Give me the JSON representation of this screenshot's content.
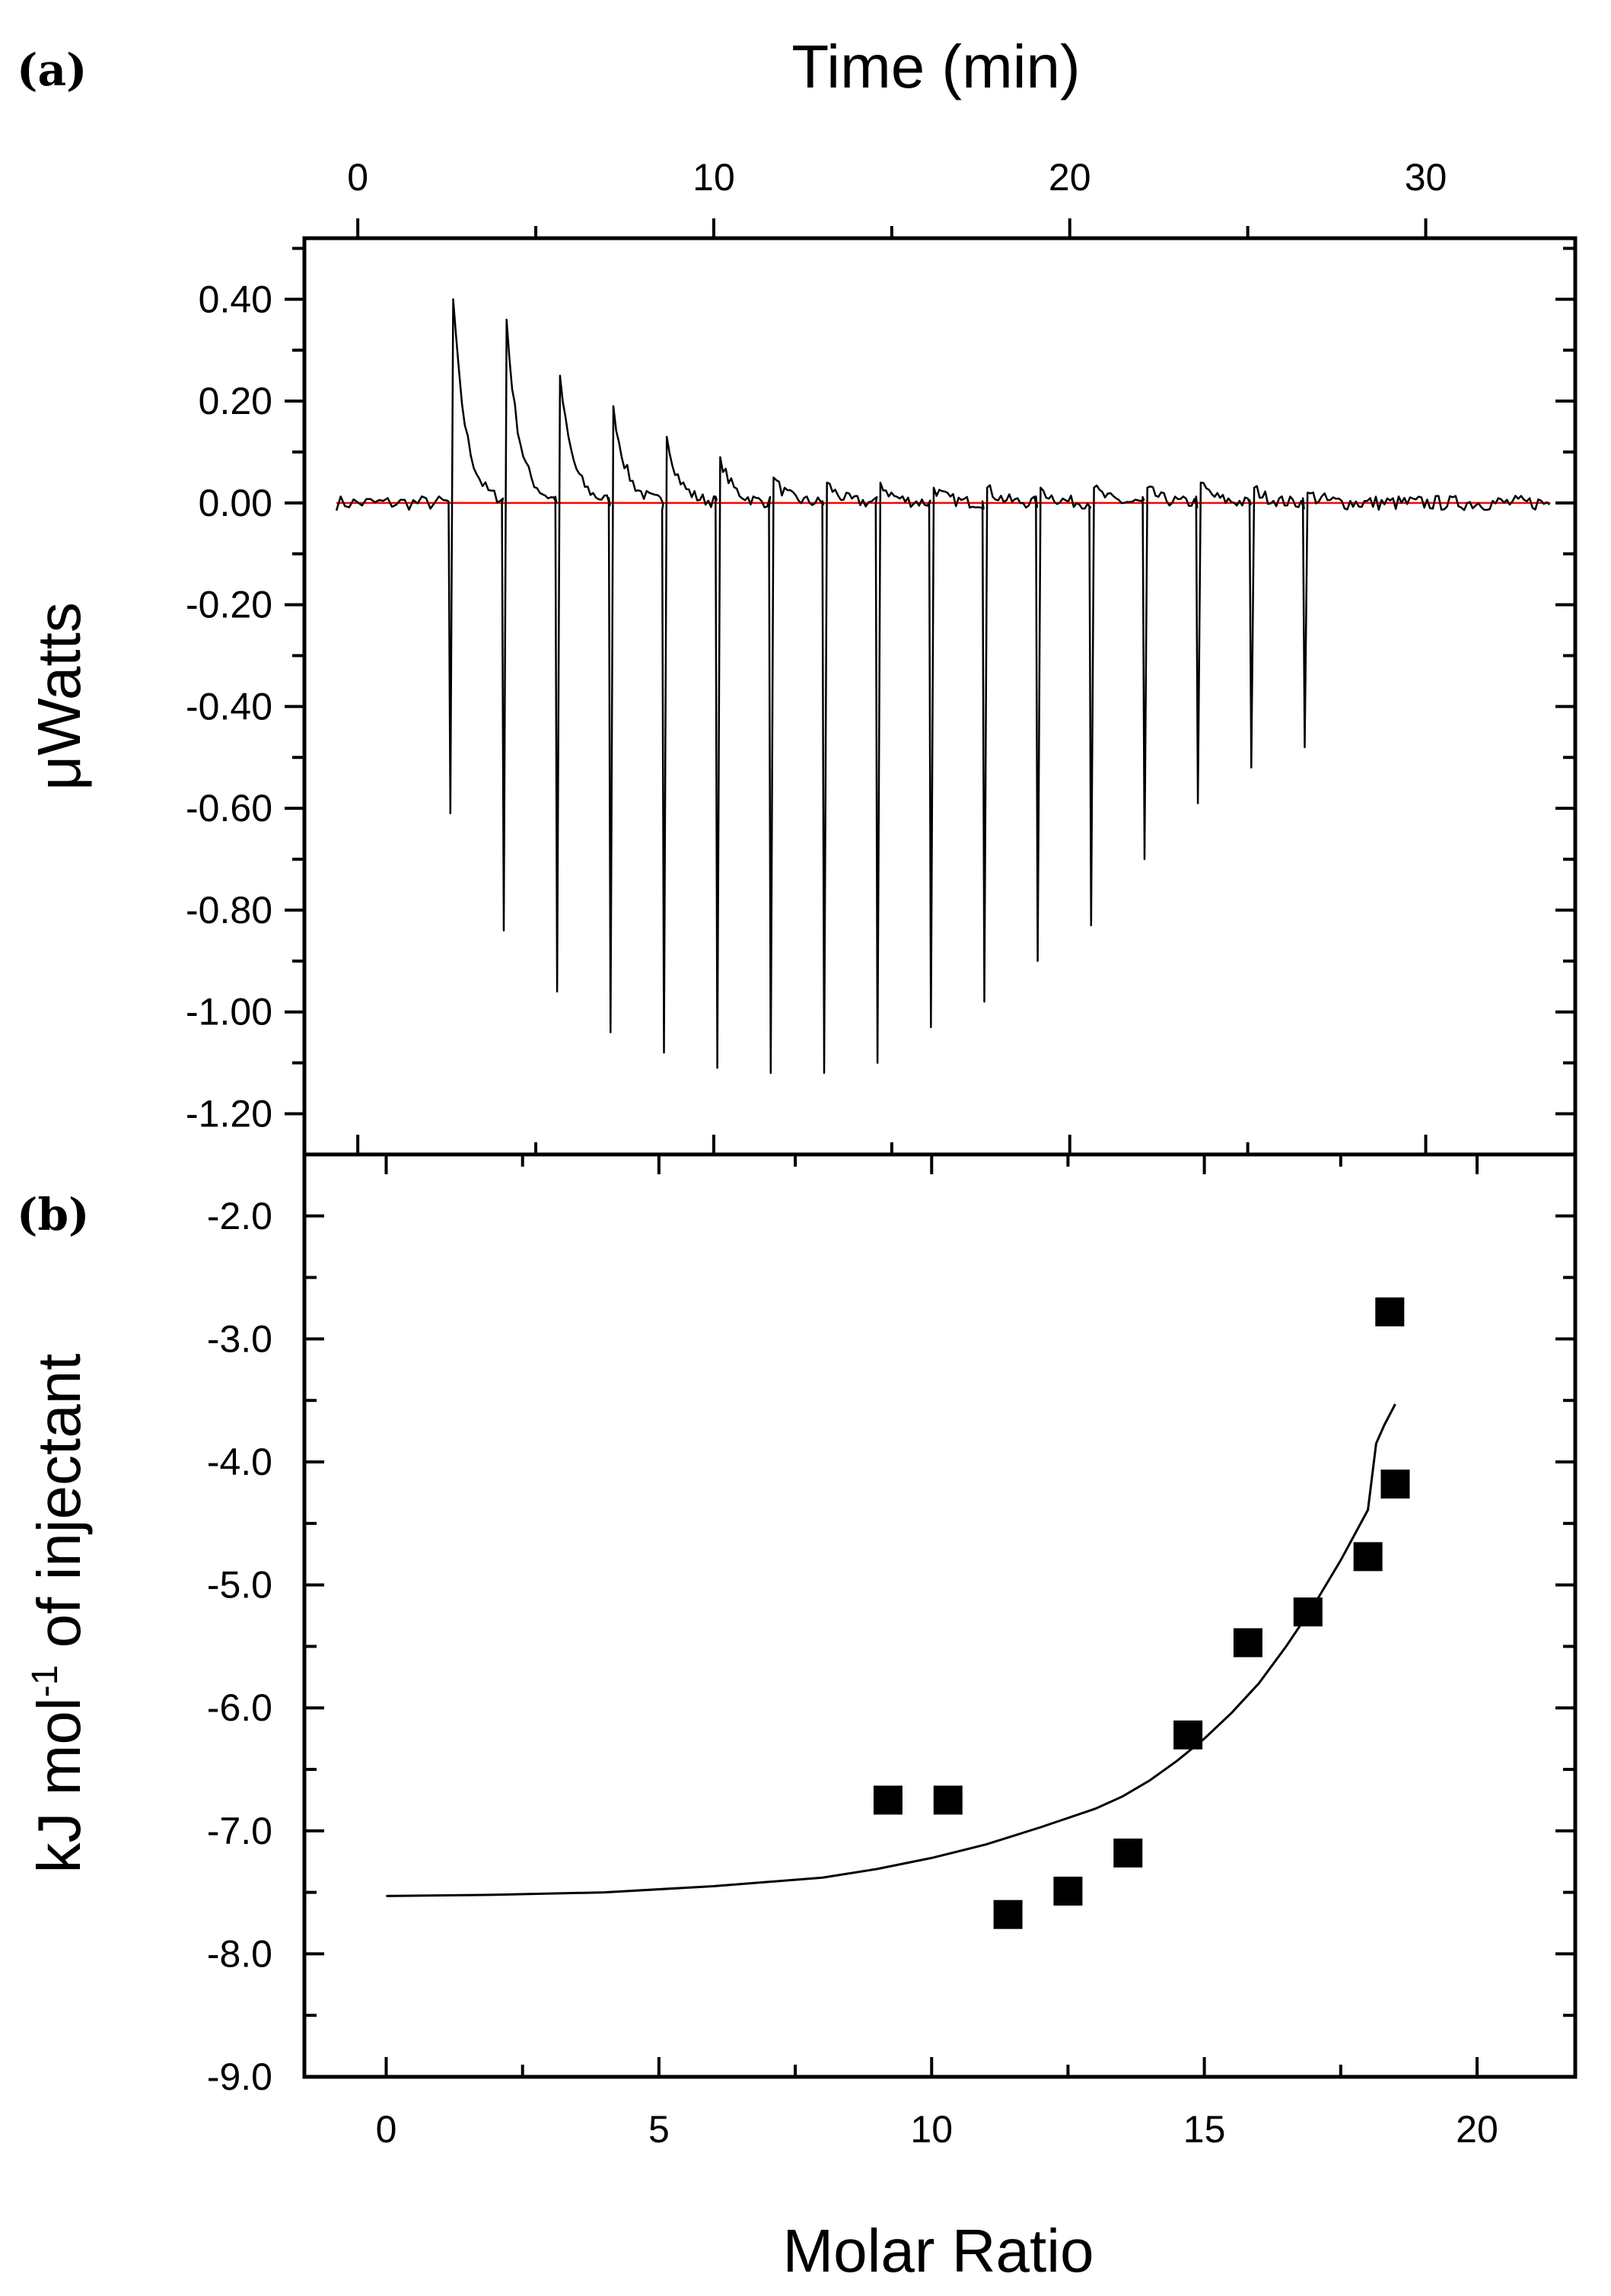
{
  "panel_labels": {
    "a": "(a)",
    "b": "(b)"
  },
  "colors": {
    "trace": "#000000",
    "baseline": "#ff0000",
    "markers": "#000000",
    "fit": "#000000"
  },
  "chart_data": [
    {
      "type": "line",
      "panel": "(a)",
      "xlabel": "Time (min)",
      "xaxis_position": "top",
      "ylabel": "μWatts",
      "xlim": [
        -1.5,
        34.2
      ],
      "ylim": [
        -1.28,
        0.52
      ],
      "xticks": [
        0,
        10,
        20,
        30
      ],
      "xtick_labels": [
        "0",
        "10",
        "20",
        "30"
      ],
      "yticks": [
        0.4,
        0.2,
        0.0,
        -0.2,
        -0.4,
        -0.6,
        -0.8,
        -1.0,
        -1.2
      ],
      "ytick_labels": [
        "0.40",
        "0.20",
        "0.00",
        "-0.20",
        "-0.40",
        "-0.60",
        "-0.80",
        "-1.00",
        "-1.20"
      ],
      "baseline": 0.0,
      "grid": false,
      "injections": [
        {
          "t": 2.6,
          "exo": 0.4,
          "endo": -0.61
        },
        {
          "t": 4.1,
          "exo": 0.36,
          "endo": -0.84
        },
        {
          "t": 5.6,
          "exo": 0.25,
          "endo": -0.96
        },
        {
          "t": 7.1,
          "exo": 0.19,
          "endo": -1.04
        },
        {
          "t": 8.6,
          "exo": 0.13,
          "endo": -1.08
        },
        {
          "t": 10.1,
          "exo": 0.09,
          "endo": -1.11
        },
        {
          "t": 11.6,
          "exo": 0.05,
          "endo": -1.12
        },
        {
          "t": 13.1,
          "exo": 0.04,
          "endo": -1.12
        },
        {
          "t": 14.6,
          "exo": 0.04,
          "endo": -1.1
        },
        {
          "t": 16.1,
          "exo": 0.03,
          "endo": -1.03
        },
        {
          "t": 17.6,
          "exo": 0.03,
          "endo": -0.98
        },
        {
          "t": 19.1,
          "exo": 0.03,
          "endo": -0.9
        },
        {
          "t": 20.6,
          "exo": 0.03,
          "endo": -0.83
        },
        {
          "t": 22.1,
          "exo": 0.03,
          "endo": -0.7
        },
        {
          "t": 23.6,
          "exo": 0.04,
          "endo": -0.59
        },
        {
          "t": 25.1,
          "exo": 0.03,
          "endo": -0.52
        },
        {
          "t": 26.6,
          "exo": 0.02,
          "endo": -0.48
        }
      ]
    },
    {
      "type": "scatter",
      "panel": "(b)",
      "xlabel": "Molar Ratio",
      "ylabel": "kJ mol⁻¹ of injectant",
      "ylabel_parts": {
        "pre": "kJ mol",
        "sup": "-1",
        "post": " of injectant"
      },
      "xlim": [
        -1.5,
        21.8
      ],
      "ylim": [
        -9.0,
        -1.5
      ],
      "xticks": [
        0,
        5,
        10,
        15,
        20
      ],
      "xtick_labels": [
        "0",
        "5",
        "10",
        "15",
        "20"
      ],
      "yticks": [
        -2.0,
        -3.0,
        -4.0,
        -5.0,
        -6.0,
        -7.0,
        -8.0,
        -9.0
      ],
      "ytick_labels": [
        "-2.0",
        "-3.0",
        "-4.0",
        "-5.0",
        "-6.0",
        "-7.0",
        "-8.0",
        "-9.0"
      ],
      "grid": false,
      "points": {
        "x": [
          9.2,
          10.3,
          11.4,
          12.5,
          13.6,
          14.7,
          15.8,
          16.9,
          18.0,
          18.4,
          18.5
        ],
        "y": [
          -6.75,
          -6.75,
          -7.68,
          -7.49,
          -7.18,
          -6.22,
          -5.47,
          -5.22,
          -4.77,
          -2.78,
          -4.18
        ]
      },
      "fit": {
        "x": [
          0.0,
          2.0,
          4.0,
          6.0,
          8.0,
          9.0,
          10.0,
          11.0,
          12.0,
          13.0,
          13.5,
          14.0,
          14.5,
          15.0,
          15.5,
          16.0,
          16.5,
          17.0,
          17.5,
          18.0,
          18.15,
          18.3,
          18.5
        ],
        "y": [
          -7.53,
          -7.52,
          -7.5,
          -7.45,
          -7.38,
          -7.31,
          -7.22,
          -7.11,
          -6.97,
          -6.82,
          -6.72,
          -6.59,
          -6.43,
          -6.25,
          -6.04,
          -5.8,
          -5.5,
          -5.17,
          -4.8,
          -4.39,
          -3.85,
          -3.7,
          -3.53
        ]
      }
    }
  ]
}
